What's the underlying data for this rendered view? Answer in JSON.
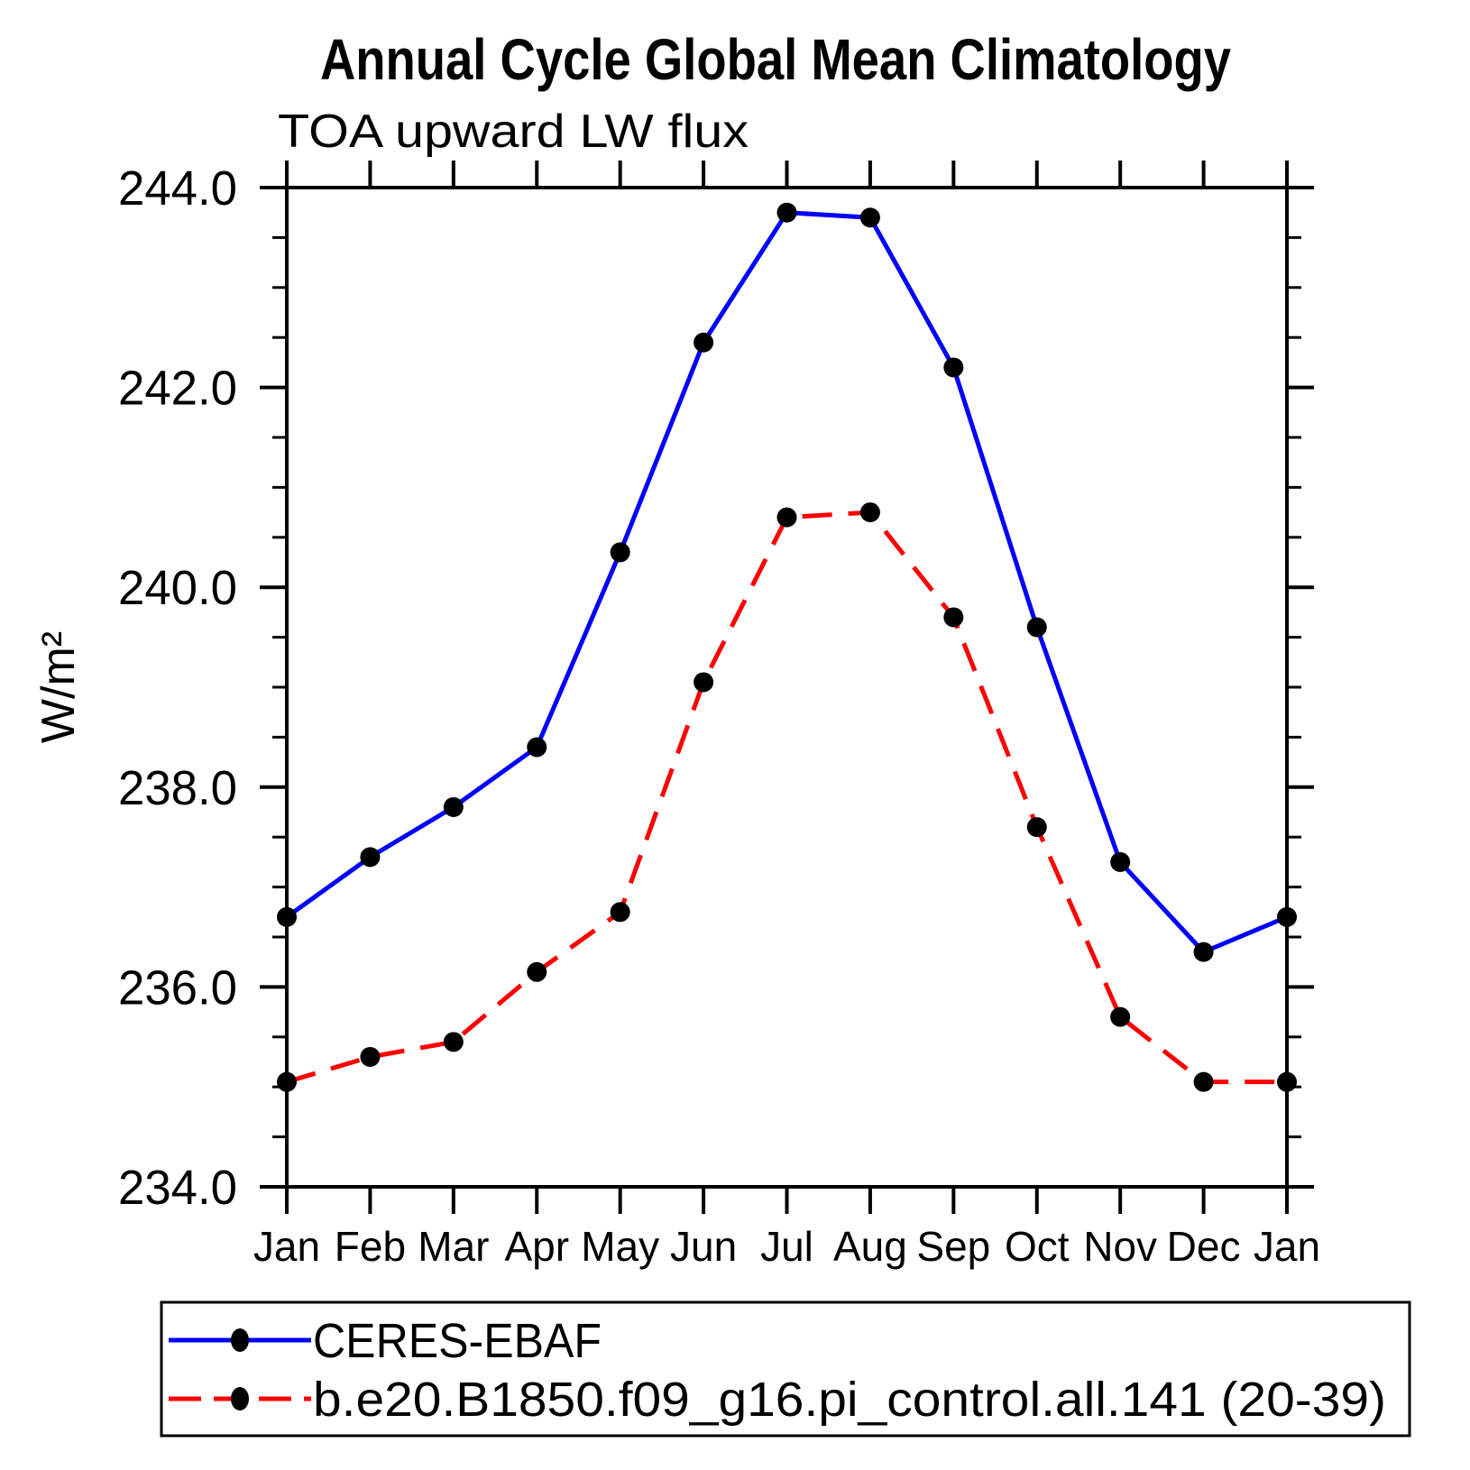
{
  "page": {
    "background_color": "#ffffff"
  },
  "chart_data": {
    "type": "line",
    "title": "Annual Cycle Global Mean Climatology",
    "subtitle": "TOA upward LW flux",
    "ylabel": "W/m²",
    "xlabel": "",
    "categories": [
      "Jan",
      "Feb",
      "Mar",
      "Apr",
      "May",
      "Jun",
      "Jul",
      "Aug",
      "Sep",
      "Oct",
      "Nov",
      "Dec",
      "Jan"
    ],
    "ylim": [
      234.0,
      244.0
    ],
    "y_major_ticks": [
      234.0,
      236.0,
      238.0,
      240.0,
      242.0,
      244.0
    ],
    "y_tick_labels": [
      "234.0",
      "236.0",
      "238.0",
      "240.0",
      "242.0",
      "244.0"
    ],
    "y_minor_step": 0.5,
    "grid": false,
    "legend_position": "bottom",
    "axis_color": "#000000",
    "marker_color": "#000000",
    "series": [
      {
        "name": "CERES-EBAF",
        "color": "#0000ff",
        "line_style": "solid",
        "marker": "circle",
        "values": [
          236.7,
          237.3,
          237.8,
          238.4,
          240.35,
          242.45,
          243.75,
          243.7,
          242.2,
          239.6,
          237.25,
          236.35,
          236.7
        ]
      },
      {
        "name": "b.e20.B1850.f09_g16.pi_control.all.141 (20-39)",
        "color": "#ff0000",
        "line_style": "dashed",
        "marker": "circle",
        "values": [
          235.05,
          235.3,
          235.45,
          236.15,
          236.75,
          239.05,
          240.7,
          240.75,
          239.7,
          237.6,
          235.7,
          235.05,
          235.05
        ]
      }
    ]
  }
}
